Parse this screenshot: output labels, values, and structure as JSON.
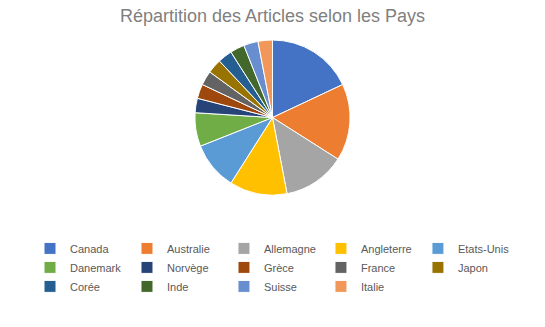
{
  "chart_data": {
    "type": "pie",
    "title": "Répartition des Articles selon les Pays",
    "categories": [
      "Canada",
      "Australie",
      "Allemagne",
      "Angleterre",
      "Etats-Unis",
      "Danemark",
      "Norvège",
      "Grèce",
      "France",
      "Japon",
      "Corée",
      "Inde",
      "Suisse",
      "Italie"
    ],
    "values": [
      18,
      16,
      13,
      12,
      10,
      7,
      3,
      3,
      3,
      3,
      3,
      3,
      3,
      3
    ],
    "colors": [
      "#4472c4",
      "#ed7d31",
      "#a5a5a5",
      "#ffc000",
      "#5b9bd5",
      "#70ad47",
      "#264478",
      "#9e480e",
      "#636363",
      "#997300",
      "#255e91",
      "#43682b",
      "#698ed0",
      "#f1975a"
    ],
    "legend": "bottom"
  }
}
